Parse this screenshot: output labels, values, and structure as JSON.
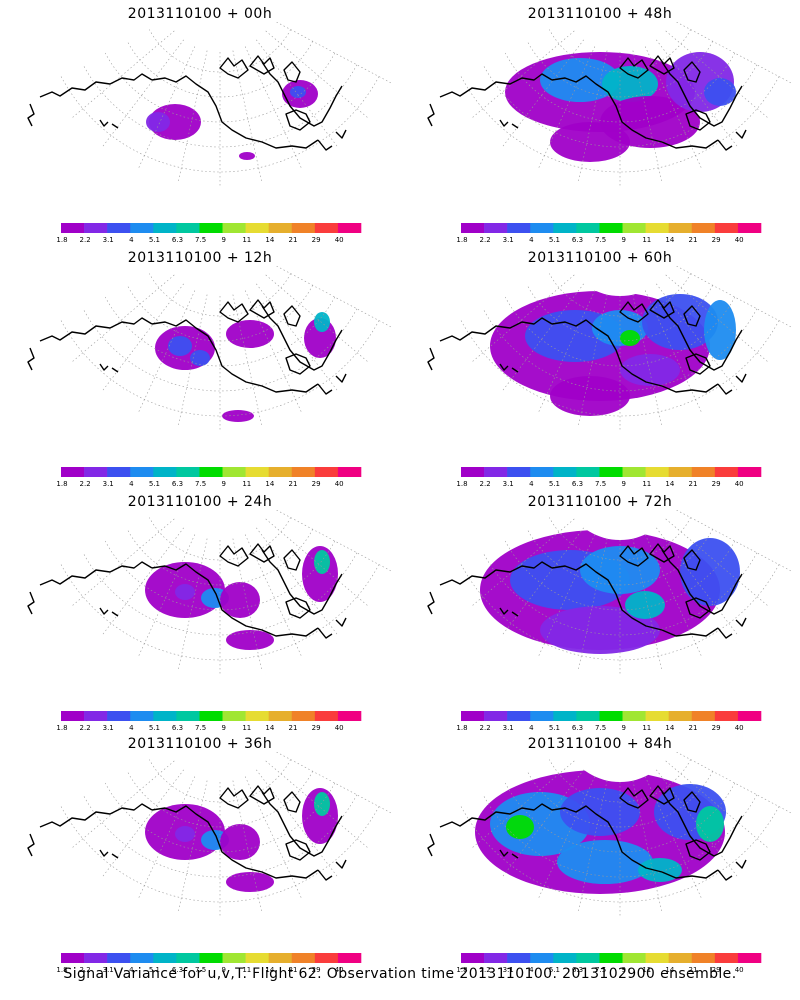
{
  "panels": [
    {
      "title": "2013110100 + 00h",
      "level": 0
    },
    {
      "title": "2013110100 + 48h",
      "level": 3
    },
    {
      "title": "2013110100 + 12h",
      "level": 1
    },
    {
      "title": "2013110100 + 60h",
      "level": 4
    },
    {
      "title": "2013110100 + 24h",
      "level": 2
    },
    {
      "title": "2013110100 + 72h",
      "level": 5
    },
    {
      "title": "2013110100 + 36h",
      "level": 2
    },
    {
      "title": "2013110100 + 84h",
      "level": 6
    }
  ],
  "colorbar": {
    "labels": [
      "1.8",
      "2.2",
      "3.1",
      "4",
      "5.1",
      "6.3",
      "7.5",
      "9",
      "11",
      "14",
      "21",
      "29",
      "40"
    ],
    "colors": [
      "#a000c8",
      "#8228e6",
      "#3c50f0",
      "#1e8cf0",
      "#00b4c8",
      "#00c8a0",
      "#00dc00",
      "#a0e632",
      "#e6dc32",
      "#e6af2d",
      "#f08228",
      "#fa3c3c",
      "#f00082"
    ]
  },
  "footer": "Signal Variance for u,v,T. Flight 62. Observation time 2013110100. 2013102900 ensemble."
}
